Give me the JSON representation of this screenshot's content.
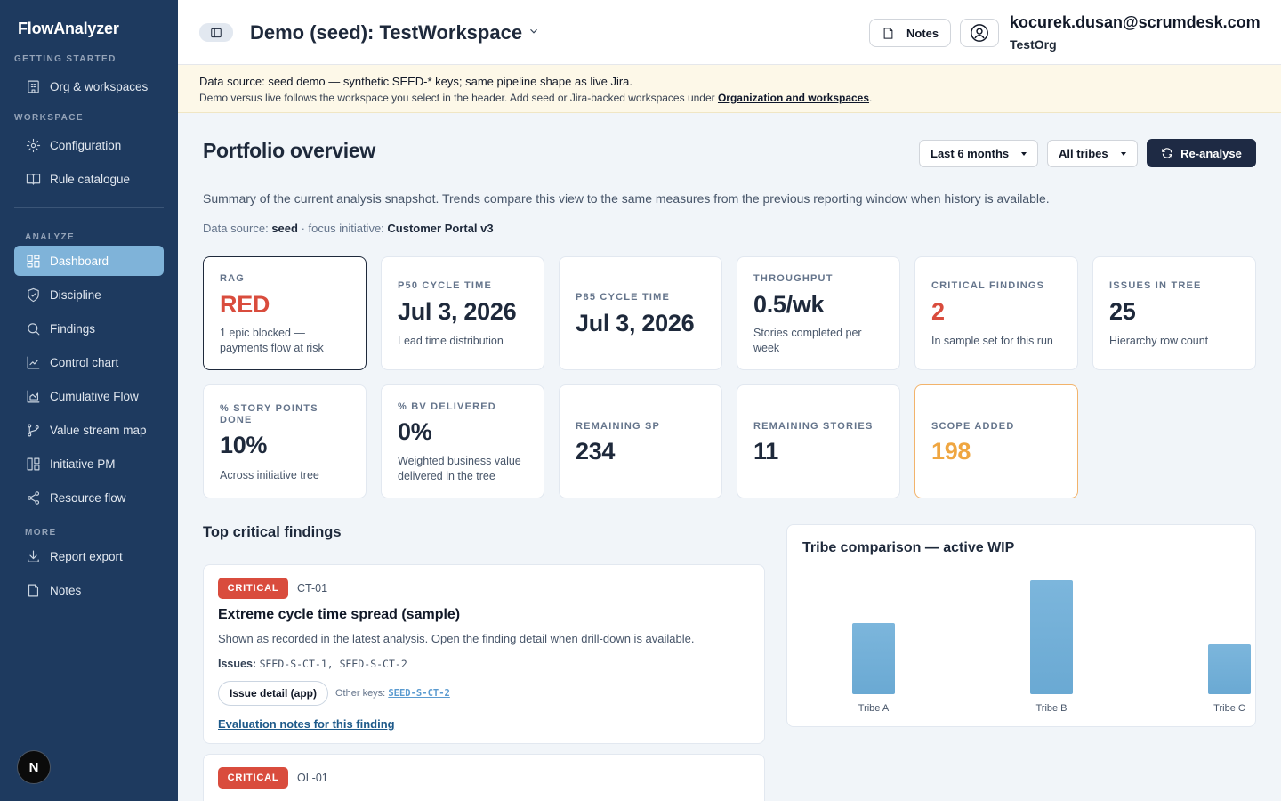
{
  "app": {
    "brand": "FlowAnalyzer",
    "n_badge": "N"
  },
  "sidebar": {
    "sections": {
      "getting_started": "GETTING STARTED",
      "workspace": "WORKSPACE",
      "analyze": "ANALYZE",
      "more": "MORE"
    },
    "items": [
      {
        "label": "Org & workspaces",
        "icon": "building-icon"
      },
      {
        "label": "Configuration",
        "icon": "gear-icon"
      },
      {
        "label": "Rule catalogue",
        "icon": "book-icon"
      },
      {
        "label": "Dashboard",
        "icon": "grid-icon",
        "active": true
      },
      {
        "label": "Discipline",
        "icon": "shield-icon"
      },
      {
        "label": "Findings",
        "icon": "search-icon"
      },
      {
        "label": "Control chart",
        "icon": "line-chart-icon"
      },
      {
        "label": "Cumulative Flow",
        "icon": "area-chart-icon"
      },
      {
        "label": "Value stream map",
        "icon": "branch-icon"
      },
      {
        "label": "Initiative PM",
        "icon": "columns-icon"
      },
      {
        "label": "Resource flow",
        "icon": "share-icon"
      },
      {
        "label": "Report export",
        "icon": "download-icon"
      },
      {
        "label": "Notes",
        "icon": "file-icon"
      }
    ]
  },
  "header": {
    "workspace_title": "Demo (seed): TestWorkspace",
    "notes_label": "Notes",
    "user_email": "kocurek.dusan@scrumdesk.com",
    "user_org": "TestOrg"
  },
  "banner": {
    "line1": "Data source: seed demo — synthetic SEED-* keys; same pipeline shape as live Jira.",
    "line2_prefix": "Demo versus live follows the workspace you select in the header. Add seed or Jira-backed workspaces under ",
    "line2_link": "Organization and workspaces",
    "line2_suffix": "."
  },
  "main": {
    "title": "Portfolio overview",
    "period_select": "Last 6 months",
    "tribe_select": "All tribes",
    "reanalyse_label": "Re-analyse",
    "summary": "Summary of the current analysis snapshot. Trends compare this view to the same measures from the previous reporting window when history is available.",
    "datasource_prefix": "Data source: ",
    "datasource_value": "seed",
    "focus_prefix": " · focus initiative: ",
    "focus_value": "Customer Portal v3"
  },
  "kpis": [
    {
      "label": "RAG",
      "value": "RED",
      "sub": "1 epic blocked — payments flow at risk"
    },
    {
      "label": "P50 CYCLE TIME",
      "value": "Jul 3, 2026",
      "sub": "Lead time distribution"
    },
    {
      "label": "P85 CYCLE TIME",
      "value": "Jul 3, 2026",
      "sub": ""
    },
    {
      "label": "THROUGHPUT",
      "value": "0.5/wk",
      "sub": "Stories completed per week"
    },
    {
      "label": "CRITICAL FINDINGS",
      "value": "2",
      "sub": "In sample set for this run"
    },
    {
      "label": "ISSUES IN TREE",
      "value": "25",
      "sub": "Hierarchy row count"
    },
    {
      "label": "% STORY POINTS DONE",
      "value": "10%",
      "sub": "Across initiative tree"
    },
    {
      "label": "% BV DELIVERED",
      "value": "0%",
      "sub": "Weighted business value delivered in the tree"
    },
    {
      "label": "REMAINING SP",
      "value": "234",
      "sub": ""
    },
    {
      "label": "REMAINING STORIES",
      "value": "11",
      "sub": ""
    },
    {
      "label": "SCOPE ADDED",
      "value": "198",
      "sub": ""
    }
  ],
  "findings": {
    "section_title": "Top critical findings",
    "items": [
      {
        "severity": "CRITICAL",
        "id": "CT-01",
        "title": "Extreme cycle time spread (sample)",
        "description": "Shown as recorded in the latest analysis. Open the finding detail when drill-down is available.",
        "issues_label": "Issues:",
        "issues": "SEED-S-CT-1, SEED-S-CT-2",
        "issue_button": "Issue detail (app)",
        "other_keys_label": "Other keys:",
        "other_key": "SEED-S-CT-2",
        "eval_link": "Evaluation notes for this finding"
      },
      {
        "severity": "CRITICAL",
        "id": "OL-01"
      }
    ]
  },
  "colors": {
    "sidebar_bg": "#1e3a5f",
    "active_item": "#7fb3d9",
    "critical": "#d94c3d",
    "scope": "#efa641",
    "bar": "#6aa9d3"
  },
  "chart_data": {
    "type": "bar",
    "title": "Tribe comparison — active WIP",
    "categories": [
      "Tribe A",
      "Tribe B",
      "Tribe C"
    ],
    "values": [
      5,
      8,
      3.5
    ],
    "ylim": [
      0,
      8
    ],
    "grid": false
  }
}
